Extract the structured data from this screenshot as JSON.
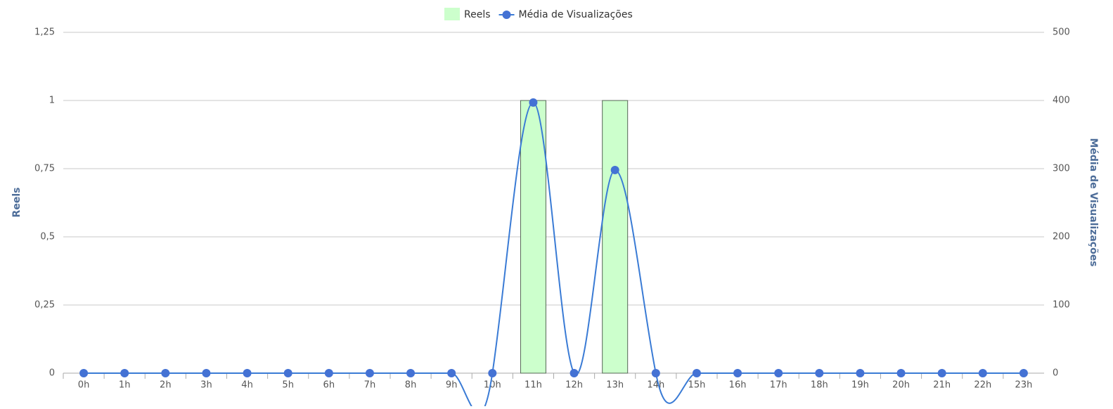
{
  "chart_data": {
    "type": "bar",
    "categories": [
      "0h",
      "1h",
      "2h",
      "3h",
      "4h",
      "5h",
      "6h",
      "7h",
      "8h",
      "9h",
      "10h",
      "11h",
      "12h",
      "13h",
      "14h",
      "15h",
      "16h",
      "17h",
      "18h",
      "19h",
      "20h",
      "21h",
      "22h",
      "23h"
    ],
    "series": [
      {
        "name": "Reels",
        "type": "bar",
        "color": "#ccffcc",
        "values": [
          0,
          0,
          0,
          0,
          0,
          0,
          0,
          0,
          0,
          0,
          0,
          1,
          0,
          1,
          0,
          0,
          0,
          0,
          0,
          0,
          0,
          0,
          0,
          0
        ]
      },
      {
        "name": "Média de Visualizações",
        "type": "line",
        "axis": "y2",
        "color": "#4472d4",
        "values": [
          0,
          0,
          0,
          0,
          0,
          0,
          0,
          0,
          0,
          0,
          0,
          397,
          0,
          298,
          0,
          0,
          0,
          0,
          0,
          0,
          0,
          0,
          0,
          0
        ]
      }
    ],
    "ylabel": "Reels",
    "y2label": "Média de Visualizações",
    "ylim": [
      0,
      1.25
    ],
    "yticks": [
      0,
      {
        "value": 0.25,
        "label": "0,25"
      },
      {
        "value": 0.5,
        "label": "0,5"
      },
      {
        "value": 0.75,
        "label": "0,75"
      },
      1,
      {
        "value": 1.25,
        "label": "1,25"
      }
    ],
    "y2lim": [
      0,
      500
    ],
    "y2ticks": [
      0,
      100,
      200,
      300,
      400,
      500
    ],
    "grid": true,
    "legend": "top"
  }
}
